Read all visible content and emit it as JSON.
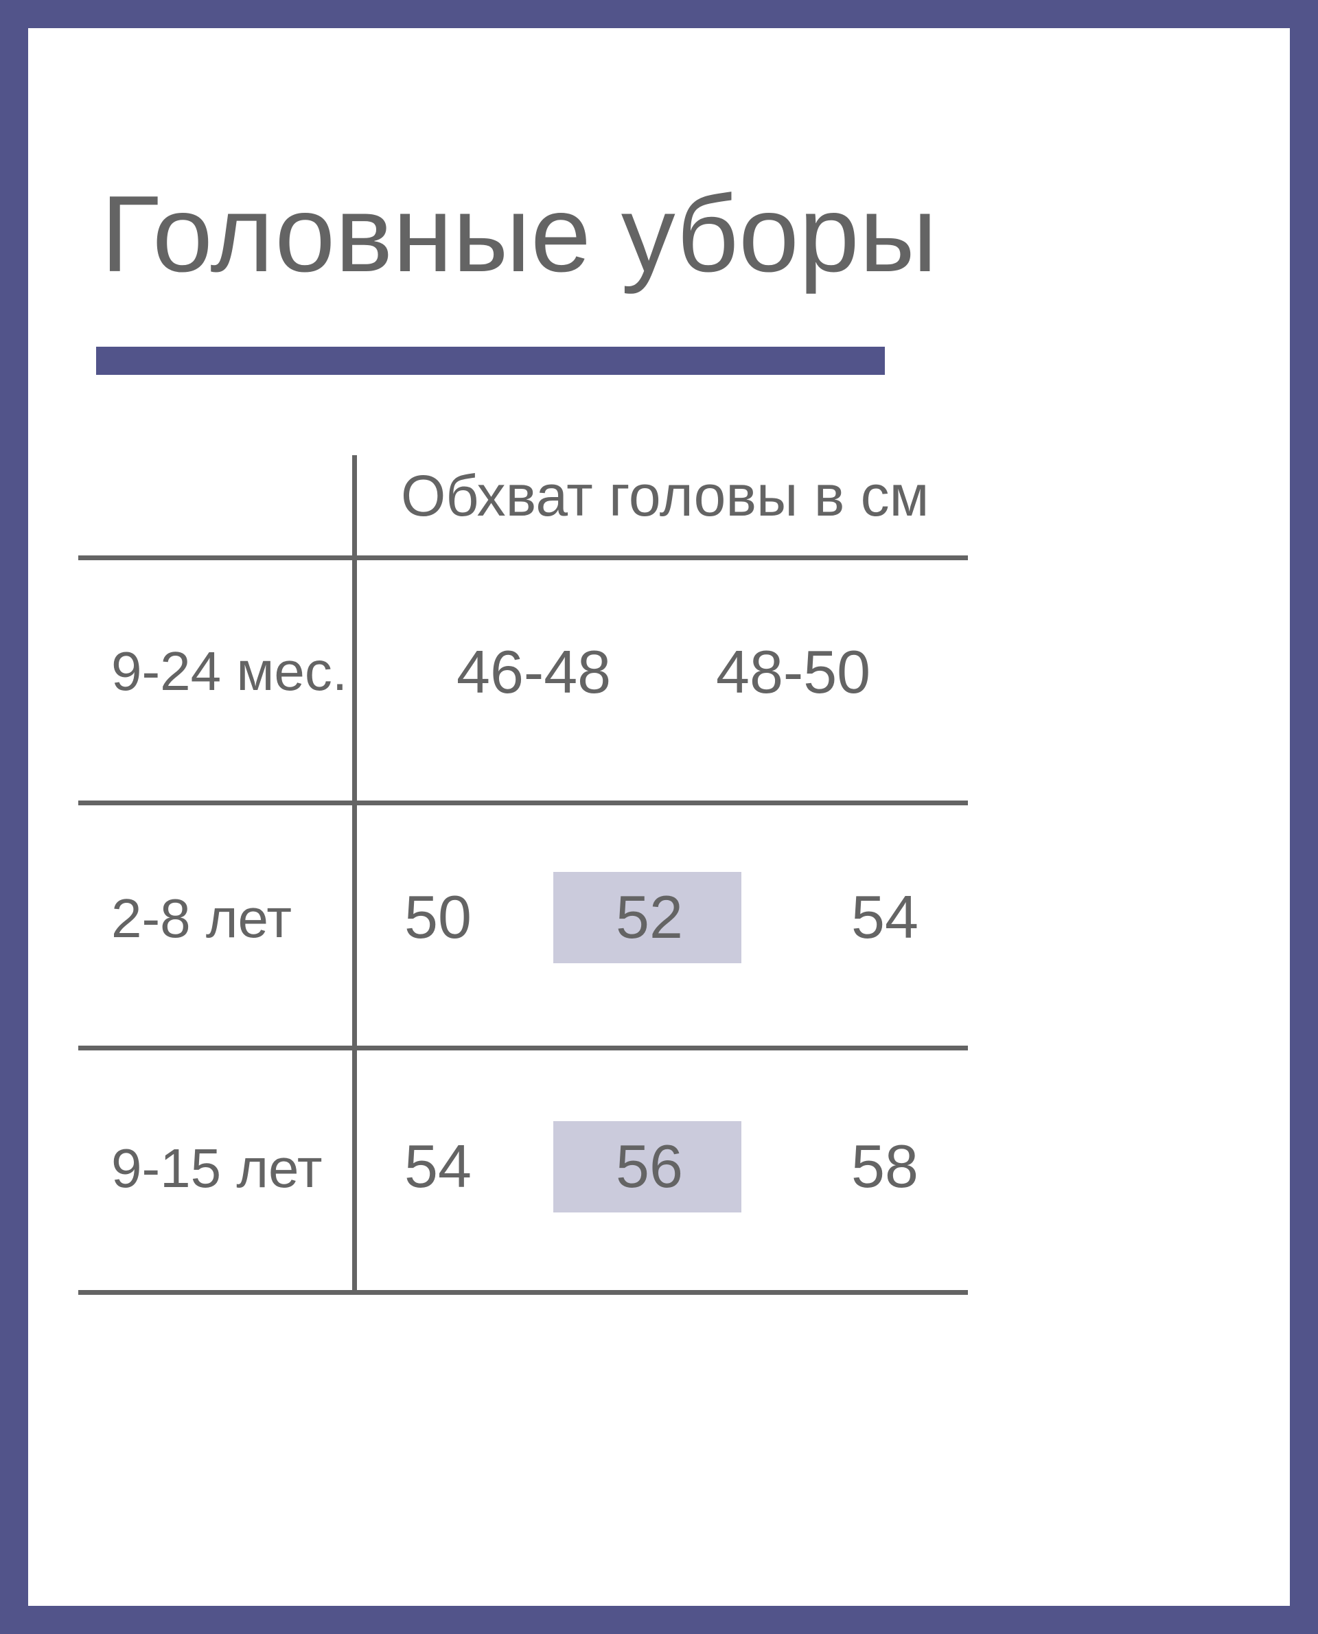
{
  "title": "Головные уборы",
  "colors": {
    "border": "#52548a",
    "highlight": "#cbcbdc",
    "text": "#646464"
  },
  "table": {
    "header": "Обхват головы в см",
    "rows": [
      {
        "label": "9-24 мес.",
        "values": [
          "46-48",
          "48-50"
        ]
      },
      {
        "label": "2-8 лет",
        "values": [
          "50",
          "52",
          "54"
        ],
        "highlighted": "52"
      },
      {
        "label": "9-15 лет",
        "values": [
          "54",
          "56",
          "58"
        ],
        "highlighted": "56"
      }
    ]
  }
}
